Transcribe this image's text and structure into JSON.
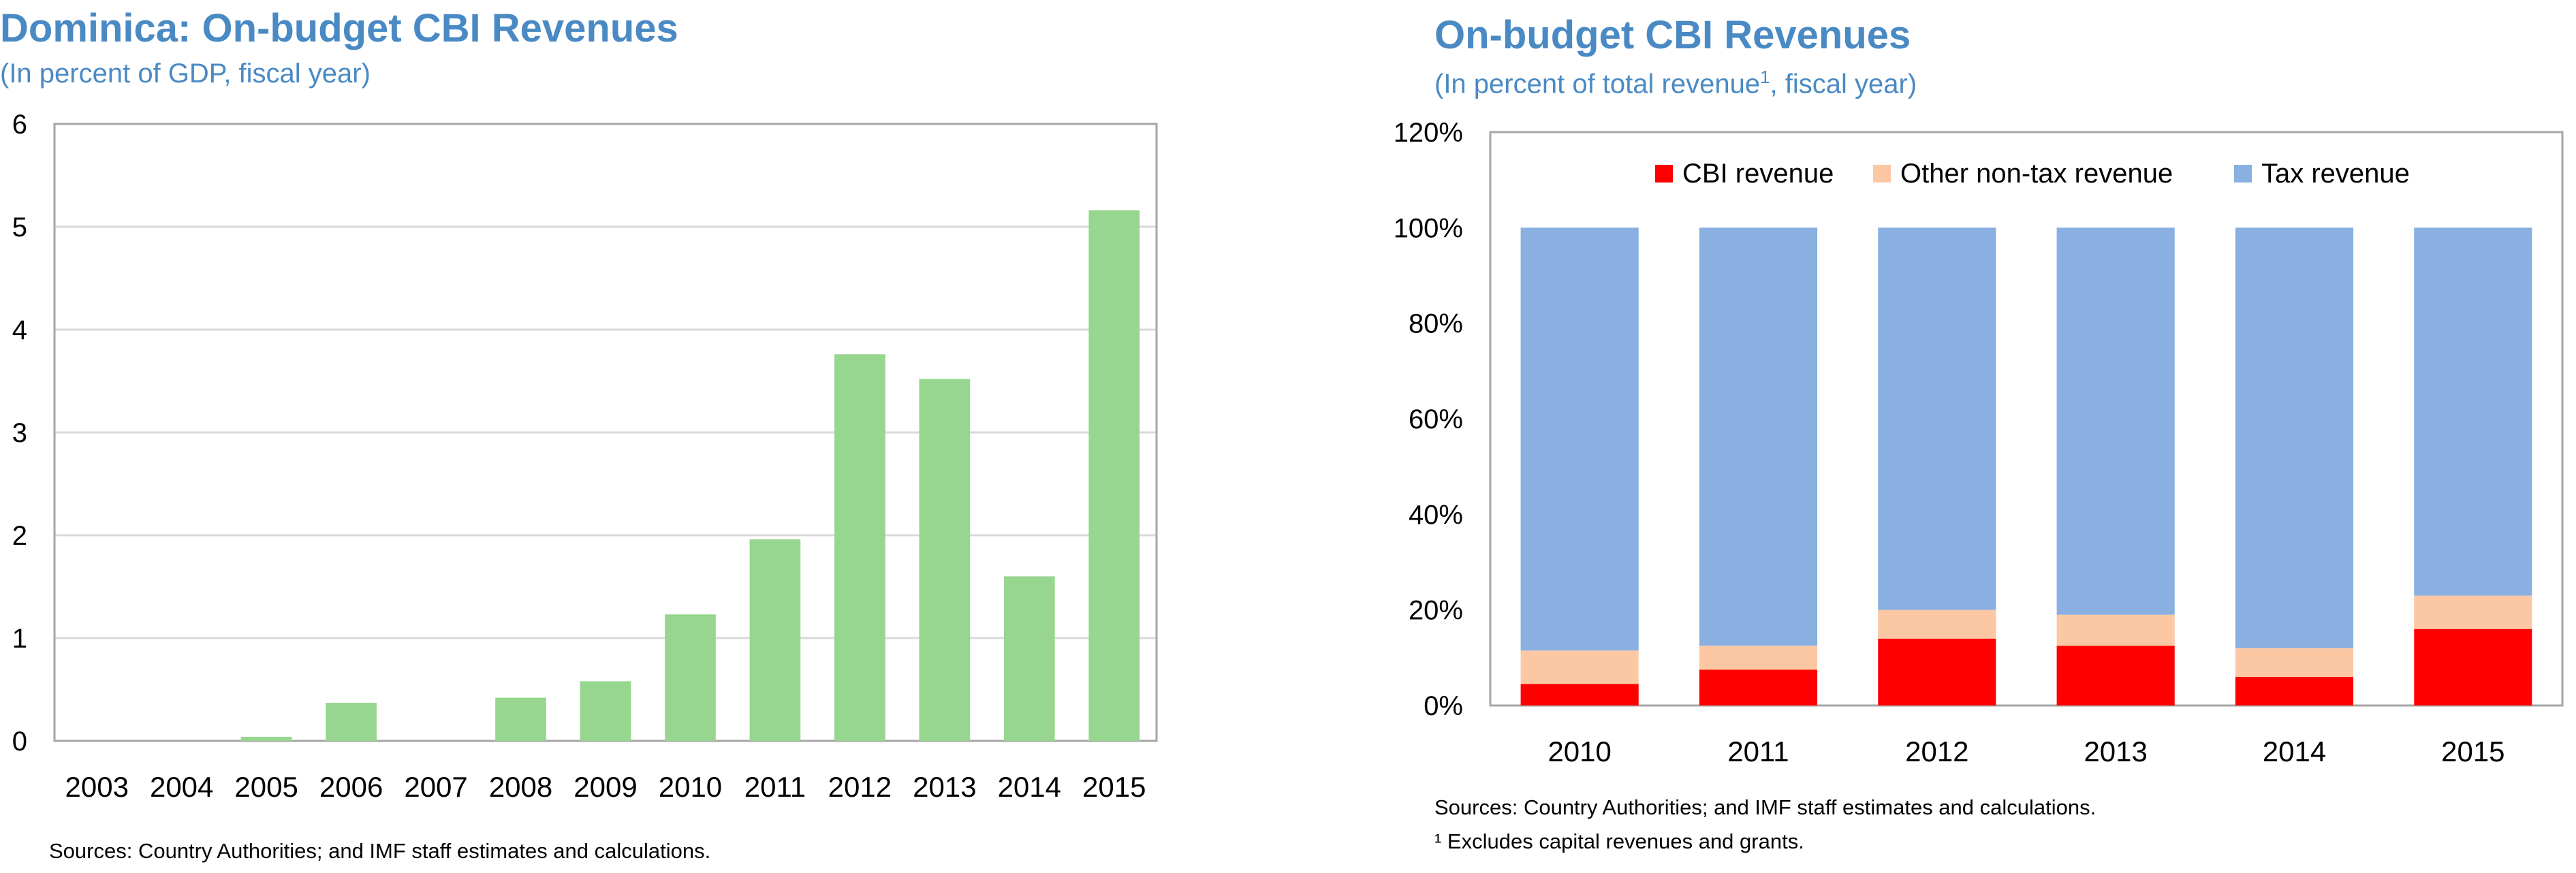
{
  "left": {
    "title": "Dominica: On-budget CBI Revenues",
    "subtitle": "(In percent of GDP, fiscal year)",
    "source": "Sources: Country Authorities; and IMF staff estimates and calculations."
  },
  "right": {
    "title": "On-budget CBI Revenues",
    "subtitle_pre": "(In percent of total revenue",
    "subtitle_sup": "1",
    "subtitle_post": ", fiscal year)",
    "source": "Sources: Country Authorities; and IMF staff estimates and calculations.",
    "footnote": "¹ Excludes capital revenues and grants."
  },
  "colors": {
    "title": "#4a8ac4",
    "bar_green": "#96d68e",
    "cbi": "#ff0000",
    "other_nontax": "#fcc8a4",
    "tax": "#89b0e0",
    "grid": "#d9d9d9",
    "axis": "#a6a6a6"
  },
  "chart_data": [
    {
      "type": "bar",
      "title": "Dominica: On-budget CBI Revenues",
      "ylabel": "In percent of GDP",
      "categories": [
        "2003",
        "2004",
        "2005",
        "2006",
        "2007",
        "2008",
        "2009",
        "2010",
        "2011",
        "2012",
        "2013",
        "2014",
        "2015"
      ],
      "values": [
        0.0,
        0.0,
        0.04,
        0.37,
        0.0,
        0.42,
        0.58,
        1.23,
        1.96,
        3.76,
        3.52,
        1.6,
        5.16
      ],
      "ylim": [
        0,
        6
      ],
      "yticks": [
        "0",
        "1",
        "2",
        "3",
        "4",
        "5",
        "6"
      ],
      "grid": true
    },
    {
      "type": "bar",
      "stacked": true,
      "title": "On-budget CBI Revenues",
      "ylabel": "In percent of total revenue",
      "categories": [
        "2010",
        "2011",
        "2012",
        "2013",
        "2014",
        "2015"
      ],
      "series": [
        {
          "name": "CBI revenue",
          "values": [
            4.5,
            7.5,
            14,
            12.5,
            6,
            16
          ]
        },
        {
          "name": "Other non-tax revenue",
          "values": [
            7,
            5,
            6,
            6.5,
            6,
            7
          ]
        },
        {
          "name": "Tax revenue",
          "values": [
            88.5,
            87.5,
            80,
            81,
            88,
            77
          ]
        }
      ],
      "ylim": [
        0,
        120
      ],
      "yticks": [
        "0%",
        "20%",
        "40%",
        "60%",
        "80%",
        "100%",
        "120%"
      ],
      "legend_position": "top",
      "grid": false
    }
  ]
}
